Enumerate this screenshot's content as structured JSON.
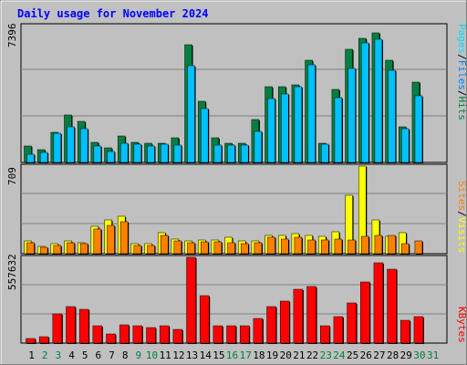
{
  "title": "Daily usage for November 2024",
  "colors": {
    "hits": "#008040",
    "files": "#00c0ff",
    "pages": "#00e0ff",
    "visits": "#ffff00",
    "sites": "#ff8000",
    "kbytes": "#ff0000",
    "weekend_label": "#008040",
    "weekday_label": "#000000",
    "background": "#c0c0c0"
  },
  "side_labels": {
    "top": [
      "Pages",
      "Files",
      "Hits"
    ],
    "middle": [
      "Sites",
      "Visits"
    ],
    "bottom": [
      "KBytes"
    ],
    "separator": "/"
  },
  "chart_data": [
    {
      "type": "bar",
      "panel": "hits-files-pages",
      "y_max_label": "7396",
      "ylim": [
        0,
        7396
      ],
      "grid": true,
      "categories": [
        "1",
        "2",
        "3",
        "4",
        "5",
        "6",
        "7",
        "8",
        "9",
        "10",
        "11",
        "12",
        "13",
        "14",
        "15",
        "16",
        "17",
        "18",
        "19",
        "20",
        "21",
        "22",
        "23",
        "24",
        "25",
        "26",
        "27",
        "28",
        "29",
        "30"
      ],
      "series": [
        {
          "name": "Hits",
          "color": "#008040",
          "values": [
            890,
            670,
            1620,
            2540,
            2230,
            1100,
            790,
            1430,
            1080,
            1040,
            1060,
            1350,
            6350,
            3300,
            1340,
            1030,
            1060,
            2320,
            4070,
            4100,
            4190,
            5510,
            1060,
            3960,
            6120,
            6730,
            7010,
            5510,
            1900,
            4330
          ]
        },
        {
          "name": "Files",
          "color": "#00c0ff",
          "values": [
            430,
            560,
            1570,
            1940,
            1800,
            910,
            570,
            1040,
            1010,
            900,
            1010,
            940,
            5210,
            2910,
            960,
            940,
            940,
            1680,
            3450,
            3680,
            4100,
            5300,
            1010,
            3480,
            5100,
            6480,
            6670,
            4960,
            1840,
            3610
          ]
        },
        {
          "name": "Pages",
          "color": "#00e0ff",
          "values": [
            0,
            0,
            0,
            0,
            0,
            0,
            0,
            0,
            0,
            0,
            0,
            0,
            0,
            0,
            0,
            0,
            0,
            0,
            0,
            0,
            0,
            0,
            0,
            0,
            0,
            0,
            0,
            0,
            0,
            0
          ]
        }
      ]
    },
    {
      "type": "bar",
      "panel": "visits-sites",
      "y_max_label": "709",
      "ylim": [
        0,
        709
      ],
      "grid": true,
      "categories": [
        "1",
        "2",
        "3",
        "4",
        "5",
        "6",
        "7",
        "8",
        "9",
        "10",
        "11",
        "12",
        "13",
        "14",
        "15",
        "16",
        "17",
        "18",
        "19",
        "20",
        "21",
        "22",
        "23",
        "24",
        "25",
        "26",
        "27",
        "28",
        "29",
        "30"
      ],
      "series": [
        {
          "name": "Visits",
          "color": "#ffff00",
          "values": [
            100,
            60,
            80,
            100,
            90,
            220,
            270,
            300,
            80,
            80,
            170,
            120,
            100,
            110,
            110,
            130,
            100,
            100,
            150,
            150,
            160,
            150,
            140,
            180,
            470,
            709,
            270,
            140,
            170,
            0
          ]
        },
        {
          "name": "Sites",
          "color": "#ff8000",
          "values": [
            90,
            55,
            70,
            85,
            80,
            200,
            230,
            260,
            70,
            70,
            150,
            100,
            85,
            95,
            95,
            90,
            80,
            90,
            130,
            120,
            130,
            110,
            110,
            120,
            110,
            140,
            150,
            150,
            80,
            100
          ]
        }
      ]
    },
    {
      "type": "bar",
      "panel": "kbytes",
      "y_max_label": "557632",
      "ylim": [
        0,
        557632
      ],
      "grid": true,
      "categories": [
        "1",
        "2",
        "3",
        "4",
        "5",
        "6",
        "7",
        "8",
        "9",
        "10",
        "11",
        "12",
        "13",
        "14",
        "15",
        "16",
        "17",
        "18",
        "19",
        "20",
        "21",
        "22",
        "23",
        "24",
        "25",
        "26",
        "27",
        "28",
        "29",
        "30"
      ],
      "series": [
        {
          "name": "KBytes",
          "color": "#ff0000",
          "values": [
            30000,
            40000,
            190000,
            240000,
            220000,
            110000,
            60000,
            120000,
            110000,
            100000,
            110000,
            90000,
            557632,
            310000,
            110000,
            110000,
            110000,
            160000,
            240000,
            270000,
            350000,
            370000,
            110000,
            170000,
            260000,
            400000,
            520000,
            480000,
            150000,
            170000
          ]
        }
      ]
    }
  ],
  "days": [
    "1",
    "2",
    "3",
    "4",
    "5",
    "6",
    "7",
    "8",
    "9",
    "10",
    "11",
    "12",
    "13",
    "14",
    "15",
    "16",
    "17",
    "18",
    "19",
    "20",
    "21",
    "22",
    "23",
    "24",
    "25",
    "26",
    "27",
    "28",
    "29",
    "30",
    "31"
  ],
  "weekend_days": [
    "2",
    "3",
    "9",
    "10",
    "16",
    "17",
    "23",
    "24",
    "30",
    "31"
  ]
}
